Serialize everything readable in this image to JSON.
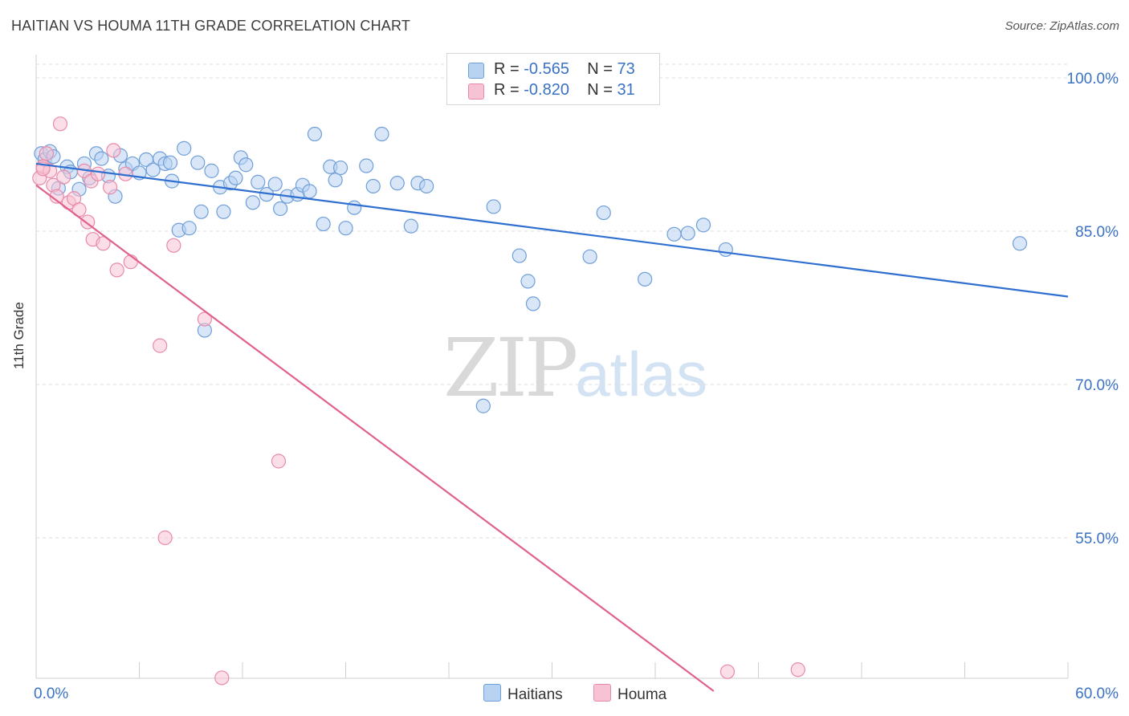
{
  "header": {
    "title": "HAITIAN VS HOUMA 11TH GRADE CORRELATION CHART",
    "source": "Source: ZipAtlas.com"
  },
  "watermark": {
    "zip": "ZIP",
    "atlas": "atlas"
  },
  "legend": {
    "rows": [
      {
        "r_label": "R = ",
        "r_value": "-0.565",
        "n_label": "N = ",
        "n_value": "73"
      },
      {
        "r_label": "R = ",
        "r_value": "-0.820",
        "n_label": "N = ",
        "n_value": "31"
      }
    ]
  },
  "colors": {
    "blue_fill": "#b8d2f2",
    "blue_stroke": "#6f9fd8",
    "blue_line": "#2f6fd0",
    "pink_fill": "#f7c3d4",
    "pink_stroke": "#e88aa8",
    "pink_line": "#e0628c",
    "axis_label": "#3a72c4",
    "grid": "#dcdcdc"
  },
  "chart_data": {
    "type": "scatter",
    "title": "HAITIAN VS HOUMA 11TH GRADE CORRELATION CHART",
    "xlabel": "",
    "ylabel": "11th Grade",
    "xlim": [
      0,
      60
    ],
    "ylim": [
      40,
      103
    ],
    "x_tick_labels": [
      "0.0%",
      "60.0%"
    ],
    "y_ticks": [
      100,
      85,
      70,
      55
    ],
    "y_tick_labels": [
      "100.0%",
      "85.0%",
      "70.0%",
      "55.0%"
    ],
    "grid": true,
    "legend_position": "bottom",
    "series": [
      {
        "name": "Haitians",
        "color": "#6f9fd8",
        "trend": {
          "x": [
            0,
            60
          ],
          "y": [
            91.6,
            78.6
          ]
        },
        "points": [
          [
            0.3,
            92.6
          ],
          [
            0.5,
            92.0
          ],
          [
            0.8,
            92.8
          ],
          [
            1.0,
            92.3
          ],
          [
            1.3,
            89.2
          ],
          [
            1.8,
            91.3
          ],
          [
            2.0,
            90.8
          ],
          [
            2.5,
            89.1
          ],
          [
            2.8,
            91.6
          ],
          [
            3.1,
            90.2
          ],
          [
            3.5,
            92.6
          ],
          [
            3.8,
            92.1
          ],
          [
            4.2,
            90.4
          ],
          [
            4.6,
            88.4
          ],
          [
            4.9,
            92.4
          ],
          [
            5.2,
            91.1
          ],
          [
            5.6,
            91.6
          ],
          [
            6.0,
            90.7
          ],
          [
            6.4,
            92.0
          ],
          [
            6.8,
            91.0
          ],
          [
            7.2,
            92.1
          ],
          [
            7.5,
            91.6
          ],
          [
            7.8,
            91.7
          ],
          [
            7.9,
            89.9
          ],
          [
            8.3,
            85.1
          ],
          [
            8.6,
            93.1
          ],
          [
            8.9,
            85.3
          ],
          [
            9.4,
            91.7
          ],
          [
            9.6,
            86.9
          ],
          [
            9.8,
            75.3
          ],
          [
            10.2,
            90.9
          ],
          [
            10.7,
            89.3
          ],
          [
            10.9,
            86.9
          ],
          [
            11.3,
            89.7
          ],
          [
            11.6,
            90.2
          ],
          [
            11.9,
            92.2
          ],
          [
            12.2,
            91.5
          ],
          [
            12.6,
            87.8
          ],
          [
            12.9,
            89.8
          ],
          [
            13.4,
            88.6
          ],
          [
            13.9,
            89.6
          ],
          [
            14.2,
            87.2
          ],
          [
            14.6,
            88.4
          ],
          [
            15.2,
            88.6
          ],
          [
            15.5,
            89.5
          ],
          [
            15.9,
            88.9
          ],
          [
            16.2,
            94.5
          ],
          [
            16.7,
            85.7
          ],
          [
            17.1,
            91.3
          ],
          [
            17.4,
            90.0
          ],
          [
            17.7,
            91.2
          ],
          [
            18.0,
            85.3
          ],
          [
            18.5,
            87.3
          ],
          [
            19.2,
            91.4
          ],
          [
            19.6,
            89.4
          ],
          [
            20.1,
            94.5
          ],
          [
            21.0,
            89.7
          ],
          [
            21.8,
            85.5
          ],
          [
            22.2,
            89.7
          ],
          [
            22.7,
            89.4
          ],
          [
            26.0,
            67.9
          ],
          [
            26.6,
            87.4
          ],
          [
            28.1,
            82.6
          ],
          [
            28.6,
            80.1
          ],
          [
            28.9,
            77.9
          ],
          [
            32.2,
            82.5
          ],
          [
            33.0,
            86.8
          ],
          [
            35.4,
            80.3
          ],
          [
            37.1,
            84.7
          ],
          [
            37.9,
            84.8
          ],
          [
            38.8,
            85.6
          ],
          [
            40.1,
            83.2
          ],
          [
            57.2,
            83.8
          ]
        ]
      },
      {
        "name": "Houma",
        "color": "#e88aa8",
        "trend": {
          "x": [
            0,
            39.4
          ],
          "y": [
            89.5,
            40.0
          ]
        },
        "points": [
          [
            0.2,
            90.2
          ],
          [
            0.4,
            91.3
          ],
          [
            0.6,
            92.6
          ],
          [
            0.8,
            90.9
          ],
          [
            1.0,
            89.5
          ],
          [
            1.2,
            88.4
          ],
          [
            1.4,
            95.5
          ],
          [
            1.6,
            90.3
          ],
          [
            1.9,
            87.8
          ],
          [
            2.2,
            88.2
          ],
          [
            2.5,
            87.1
          ],
          [
            2.8,
            90.9
          ],
          [
            3.0,
            85.9
          ],
          [
            3.2,
            89.9
          ],
          [
            3.3,
            84.2
          ],
          [
            3.6,
            90.6
          ],
          [
            3.9,
            83.8
          ],
          [
            4.3,
            89.3
          ],
          [
            4.5,
            92.9
          ],
          [
            4.7,
            81.2
          ],
          [
            5.2,
            90.6
          ],
          [
            5.5,
            82.0
          ],
          [
            7.2,
            73.8
          ],
          [
            7.5,
            55.0
          ],
          [
            8.0,
            83.6
          ],
          [
            9.8,
            76.4
          ],
          [
            10.8,
            41.3
          ],
          [
            14.1,
            62.5
          ],
          [
            40.2,
            41.9
          ],
          [
            44.3,
            42.1
          ],
          [
            0.4,
            91.1
          ]
        ]
      }
    ]
  }
}
